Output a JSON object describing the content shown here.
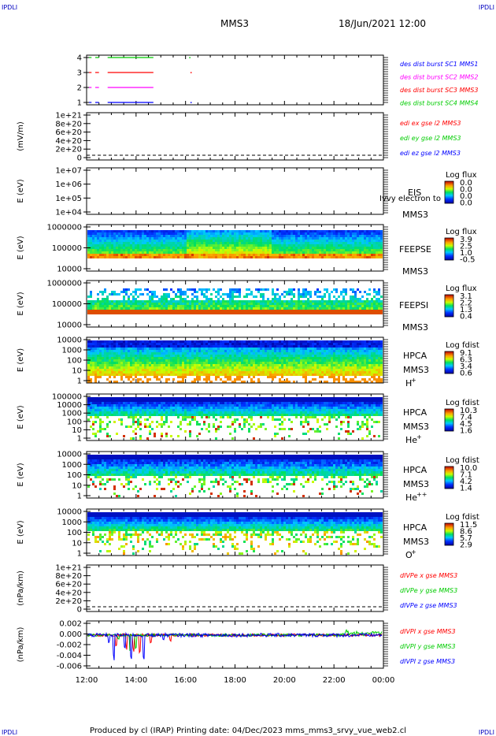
{
  "header": {
    "corner_tl": "IPDLI",
    "corner_tr": "IPDLI",
    "corner_bl": "IPDLI",
    "corner_br": "IPDLI",
    "title": "MMS3",
    "datetime": "18/Jun/2021 12:00"
  },
  "footer": {
    "text": "Produced by cl (IRAP)   Printing date: 04/Dec/2023   mms_mms3_srvy_vue_web2.cl"
  },
  "time_axis": {
    "ticks": [
      "12:00",
      "14:00",
      "16:00",
      "18:00",
      "20:00",
      "22:00",
      "00:00"
    ]
  },
  "colors": {
    "mms1": "#0000ff",
    "mms2": "#ff00ff",
    "mms3": "#ff0000",
    "mms4": "#00cc00"
  },
  "chart_data": [
    {
      "type": "line",
      "panel": "burst",
      "yticks": [
        "4",
        "3",
        "2",
        "1"
      ],
      "ylim": [
        0.5,
        4.5
      ],
      "legend": [
        {
          "text": "des dist burst SC1 MMS1",
          "color": "#0000ff"
        },
        {
          "text": "des dist burst SC2 MMS2",
          "color": "#ff00ff"
        },
        {
          "text": "des dist burst SC3 MMS3",
          "color": "#ff0000"
        },
        {
          "text": "des dist burst SC4 MMS4",
          "color": "#00cc00"
        }
      ],
      "series": [
        {
          "level": 4,
          "color": "#00cc00",
          "segments": [
            [
              0.1,
              0.2
            ],
            [
              0.35,
              0.5
            ],
            [
              0.85,
              2.7
            ]
          ],
          "dots": [
            4.15
          ]
        },
        {
          "level": 3,
          "color": "#ff0000",
          "segments": [
            [
              0.1,
              0.2
            ],
            [
              0.35,
              0.5
            ],
            [
              0.85,
              2.7
            ]
          ],
          "dots": [
            4.2
          ]
        },
        {
          "level": 2,
          "color": "#ff00ff",
          "segments": [
            [
              0.1,
              0.2
            ],
            [
              0.35,
              0.5
            ],
            [
              0.85,
              2.7
            ]
          ],
          "dots": []
        },
        {
          "level": 1,
          "color": "#0000ff",
          "segments": [
            [
              0.1,
              0.2
            ],
            [
              0.35,
              0.5
            ],
            [
              0.85,
              2.7
            ]
          ],
          "dots": [
            4.2
          ]
        }
      ]
    },
    {
      "type": "line",
      "panel": "edi",
      "ylabel": "(mV/m)",
      "yticks": [
        "1e+21",
        "8e+20",
        "6e+20",
        "4e+20",
        "2e+20",
        "0"
      ],
      "ylim": [
        -5e+19,
        1.05e+21
      ],
      "legend": [
        {
          "text": "edi ex gse l2 MMS3",
          "color": "#ff0000"
        },
        {
          "text": "edi ey gse l2 MMS3",
          "color": "#00cc00"
        },
        {
          "text": "edi ez gse l2 MMS3",
          "color": "#0000ff"
        }
      ],
      "zero_line": true
    },
    {
      "type": "heatmap",
      "panel": "eis",
      "ylabel": "E (eV)",
      "yticks": [
        "1e+07",
        "1e+06",
        "1e+05",
        "1e+04"
      ],
      "label_lines": [
        "EIS",
        "MMS3"
      ],
      "overlay_text": "Ivvy electron to",
      "colorbar": {
        "title": "Log flux",
        "ticks": [
          "0.0",
          "0.0",
          "0.0",
          "0.0"
        ]
      },
      "empty": true
    },
    {
      "type": "heatmap",
      "panel": "feeps_e",
      "ylabel": "E (eV)",
      "yticks": [
        "1000000",
        "100000",
        "10000"
      ],
      "label_lines": [
        "FEEPSE",
        "MMS3"
      ],
      "colorbar": {
        "title": "Log flux",
        "ticks": [
          "3.9",
          "2.5",
          "1.0",
          "-0.5"
        ]
      },
      "profile": "feepse"
    },
    {
      "type": "heatmap",
      "panel": "feeps_i",
      "ylabel": "E (eV)",
      "yticks": [
        "1000000",
        "100000",
        "10000"
      ],
      "label_lines": [
        "FEEPSI",
        "MMS3"
      ],
      "colorbar": {
        "title": "Log flux",
        "ticks": [
          "3.1",
          "2.2",
          "1.3",
          "0.4"
        ]
      },
      "profile": "feepsi"
    },
    {
      "type": "heatmap",
      "panel": "hpca_h",
      "ylabel": "E (eV)",
      "yticks": [
        "10000",
        "1000",
        "100",
        "10",
        "1"
      ],
      "label_lines": [
        "HPCA",
        "MMS3"
      ],
      "species": "H",
      "species_sup": "+",
      "colorbar": {
        "title": "Log fdist",
        "ticks": [
          "9.1",
          "6.3",
          "3.4",
          "0.6"
        ]
      },
      "profile": "hplus"
    },
    {
      "type": "heatmap",
      "panel": "hpca_he",
      "ylabel": "E (eV)",
      "yticks": [
        "100000",
        "10000",
        "1000",
        "100",
        "10",
        "1"
      ],
      "label_lines": [
        "HPCA",
        "MMS3"
      ],
      "species": "He",
      "species_sup": "+",
      "colorbar": {
        "title": "Log fdist",
        "ticks": [
          "10.3",
          "7.4",
          "4.5",
          "1.6"
        ]
      },
      "profile": "heplus"
    },
    {
      "type": "heatmap",
      "panel": "hpca_hepp",
      "ylabel": "E (eV)",
      "yticks": [
        "10000",
        "1000",
        "100",
        "10",
        "1"
      ],
      "label_lines": [
        "HPCA",
        "MMS3"
      ],
      "species": "He",
      "species_sup": "++",
      "colorbar": {
        "title": "Log fdist",
        "ticks": [
          "10.0",
          "7.1",
          "4.2",
          "1.4"
        ]
      },
      "profile": "hepp"
    },
    {
      "type": "heatmap",
      "panel": "hpca_o",
      "ylabel": "E (eV)",
      "yticks": [
        "10000",
        "1000",
        "100",
        "10",
        "1"
      ],
      "label_lines": [
        "HPCA",
        "MMS3"
      ],
      "species": "O",
      "species_sup": "+",
      "colorbar": {
        "title": "Log fdist",
        "ticks": [
          "11.5",
          "8.6",
          "5.7",
          "2.9"
        ]
      },
      "profile": "oplus"
    },
    {
      "type": "line",
      "panel": "divpe",
      "ylabel": "(nPa/km)",
      "yticks": [
        "1e+21",
        "8e+20",
        "6e+20",
        "4e+20",
        "2e+20",
        "0"
      ],
      "ylim": [
        -5e+19,
        1.05e+21
      ],
      "legend": [
        {
          "text": "dIVPe x gse MMS3",
          "color": "#ff0000"
        },
        {
          "text": "dIVPe y gse MMS3",
          "color": "#00cc00"
        },
        {
          "text": "dIVPe z gse MMS3",
          "color": "#0000ff"
        }
      ],
      "zero_line": true
    },
    {
      "type": "line",
      "panel": "divpi",
      "ylabel": "(nPa/km)",
      "yticks": [
        "0.002",
        "0.000",
        "-0.002",
        "-0.004",
        "-0.006"
      ],
      "ylim": [
        -0.0068,
        0.0026
      ],
      "legend": [
        {
          "text": "dIVPI x gse MMS3",
          "color": "#ff0000"
        },
        {
          "text": "dIVPI y gse MMS3",
          "color": "#00cc00"
        },
        {
          "text": "dIVPI z gse MMS3",
          "color": "#0000ff"
        }
      ],
      "series": [
        {
          "name": "x",
          "color": "#ff0000",
          "spikes": [
            [
              1.2,
              -0.0025
            ],
            [
              1.6,
              -0.0032
            ],
            [
              1.9,
              -0.0045
            ],
            [
              2.15,
              -0.0048
            ],
            [
              2.6,
              -0.002
            ],
            [
              3.4,
              -0.0015
            ]
          ]
        },
        {
          "name": "y",
          "color": "#00cc00",
          "spikes": [
            [
              1.3,
              -0.0012
            ],
            [
              1.75,
              -0.0045
            ],
            [
              2.0,
              -0.004
            ]
          ]
        },
        {
          "name": "z",
          "color": "#0000ff",
          "spikes": [
            [
              0.9,
              -0.002
            ],
            [
              1.1,
              -0.006
            ],
            [
              1.55,
              -0.0035
            ],
            [
              1.8,
              -0.0058
            ],
            [
              2.3,
              -0.0055
            ],
            [
              3.1,
              -0.0012
            ]
          ]
        }
      ]
    }
  ]
}
